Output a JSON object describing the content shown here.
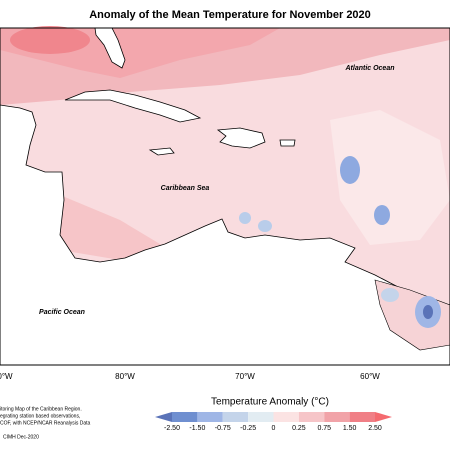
{
  "title": "Anomaly of the Mean Temperature for November 2020",
  "ocean_labels": [
    "Atlantic Ocean",
    "Caribbean Sea",
    "Pacific Ocean"
  ],
  "longitudes": [
    "0°W",
    "80°W",
    "70°W",
    "60°W"
  ],
  "footnote": [
    "itoring Map of the Caribbean Region.",
    "egrating station based observations,",
    "COF, with NCEP/NCAR Reanalysis Data",
    "CIMH Dec-2020"
  ],
  "legend": {
    "title": "Temperature Anomaly (°C)",
    "ticks": [
      "-2.50",
      "-1.50",
      "-0.75",
      "-0.25",
      "0",
      "0.25",
      "0.75",
      "1.50",
      "2.50"
    ],
    "colors": [
      "#5a73b8",
      "#6f8fd0",
      "#9fb6e6",
      "#c4d4ea",
      "#e2ecf2",
      "#fbe3e3",
      "#f6c5c8",
      "#f1a3a8",
      "#f07f86",
      "#f46a6f"
    ]
  }
}
